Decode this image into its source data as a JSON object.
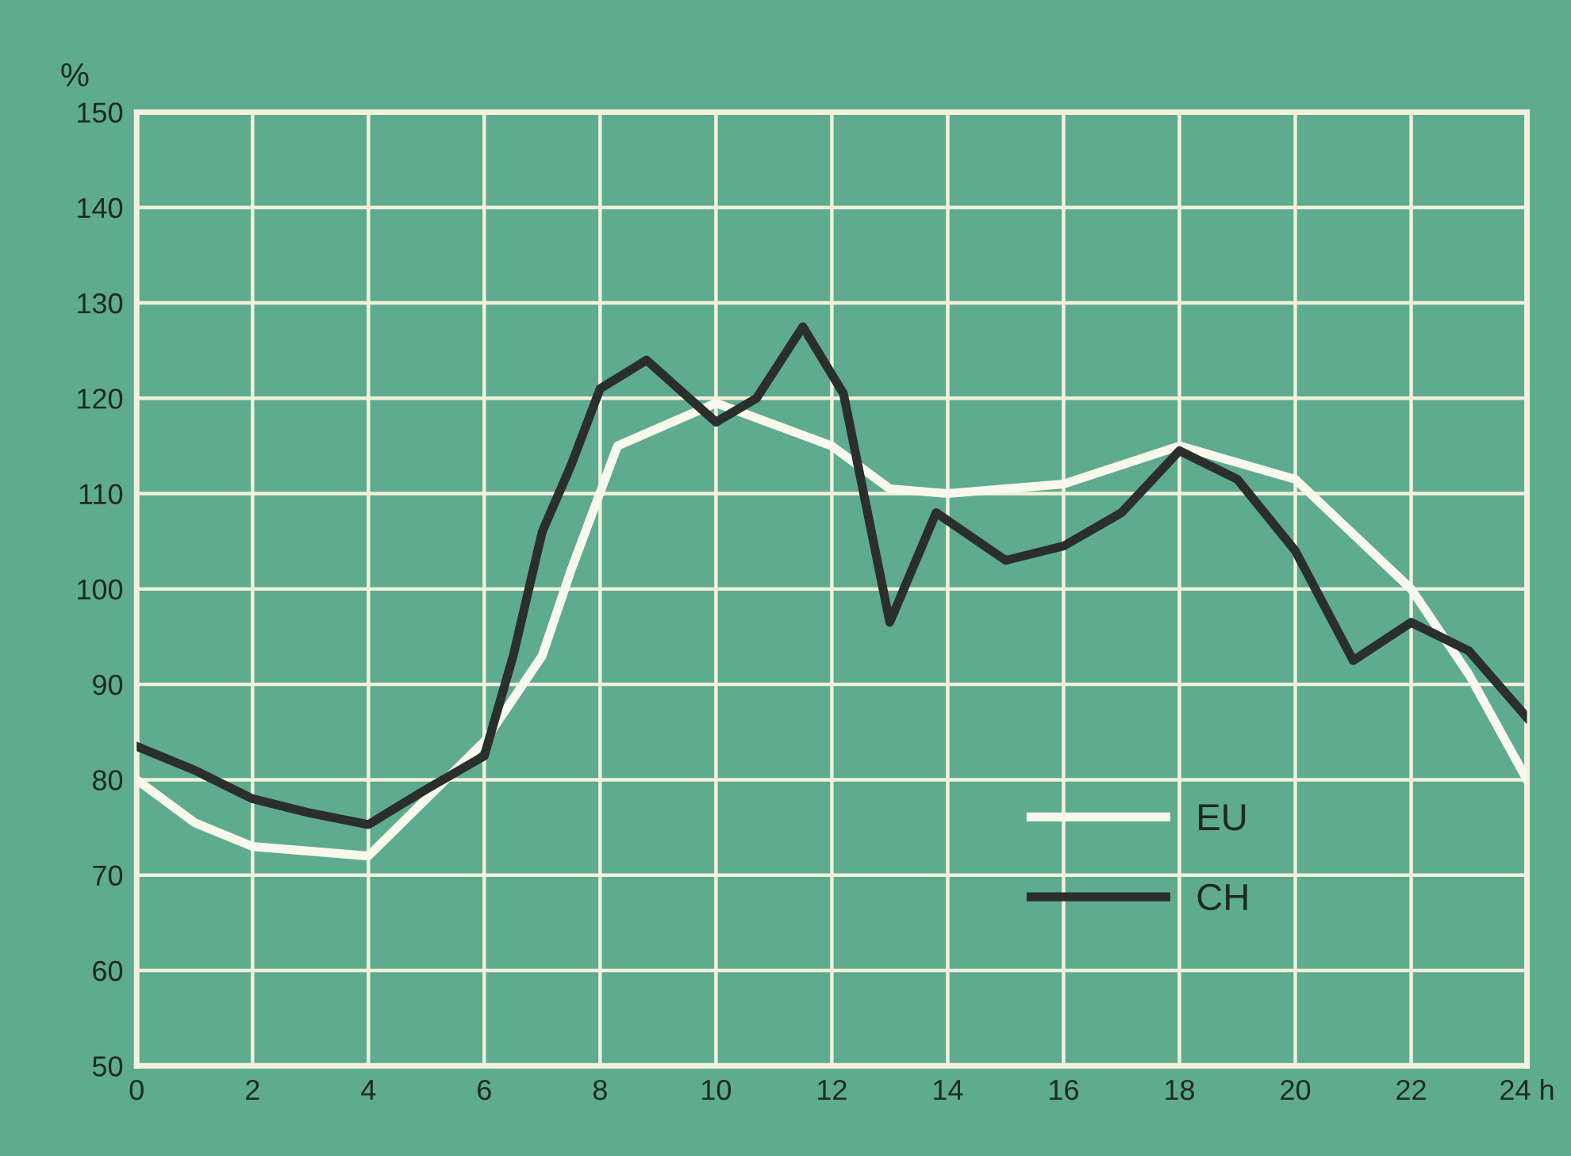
{
  "chart_data": {
    "type": "line",
    "ylabel": "%",
    "xlim": [
      0,
      24
    ],
    "ylim": [
      50,
      150
    ],
    "xticks": [
      0,
      2,
      4,
      6,
      8,
      10,
      12,
      14,
      16,
      18,
      20,
      22,
      {
        "value": 24,
        "label": "24 h"
      }
    ],
    "yticks": [
      50,
      60,
      70,
      80,
      90,
      100,
      110,
      120,
      130,
      140,
      150
    ],
    "grid": true,
    "legend": "bottom right",
    "line_style": "solid",
    "marker": "none",
    "series": [
      {
        "name": "EU",
        "color": "#f8f8ec",
        "x": [
          0,
          1,
          2,
          3,
          4,
          5,
          6,
          7,
          7.5,
          8.3,
          10,
          12,
          13,
          14,
          16,
          18,
          20,
          22,
          23,
          24
        ],
        "values": [
          80,
          75.5,
          73,
          72.5,
          72,
          78,
          84,
          93,
          102,
          115,
          119.5,
          115,
          110.5,
          110,
          111,
          115,
          111.5,
          100,
          91,
          80
        ]
      },
      {
        "name": "CH",
        "color": "#2a2e2c",
        "x": [
          0,
          1,
          2,
          3,
          4,
          5,
          6,
          6.5,
          7,
          7.5,
          8,
          8.8,
          10,
          10.7,
          11.5,
          12.2,
          13,
          13.8,
          15,
          16,
          17,
          18,
          19,
          20,
          21,
          22,
          23,
          24
        ],
        "values": [
          83.5,
          81,
          78,
          76.5,
          75.3,
          79,
          82.5,
          93,
          106,
          113,
          121,
          124,
          117.5,
          120,
          127.5,
          120.5,
          96.5,
          108,
          103,
          104.5,
          108,
          114.5,
          111.5,
          104,
          92.5,
          96.5,
          93.5,
          86.5
        ]
      }
    ]
  }
}
